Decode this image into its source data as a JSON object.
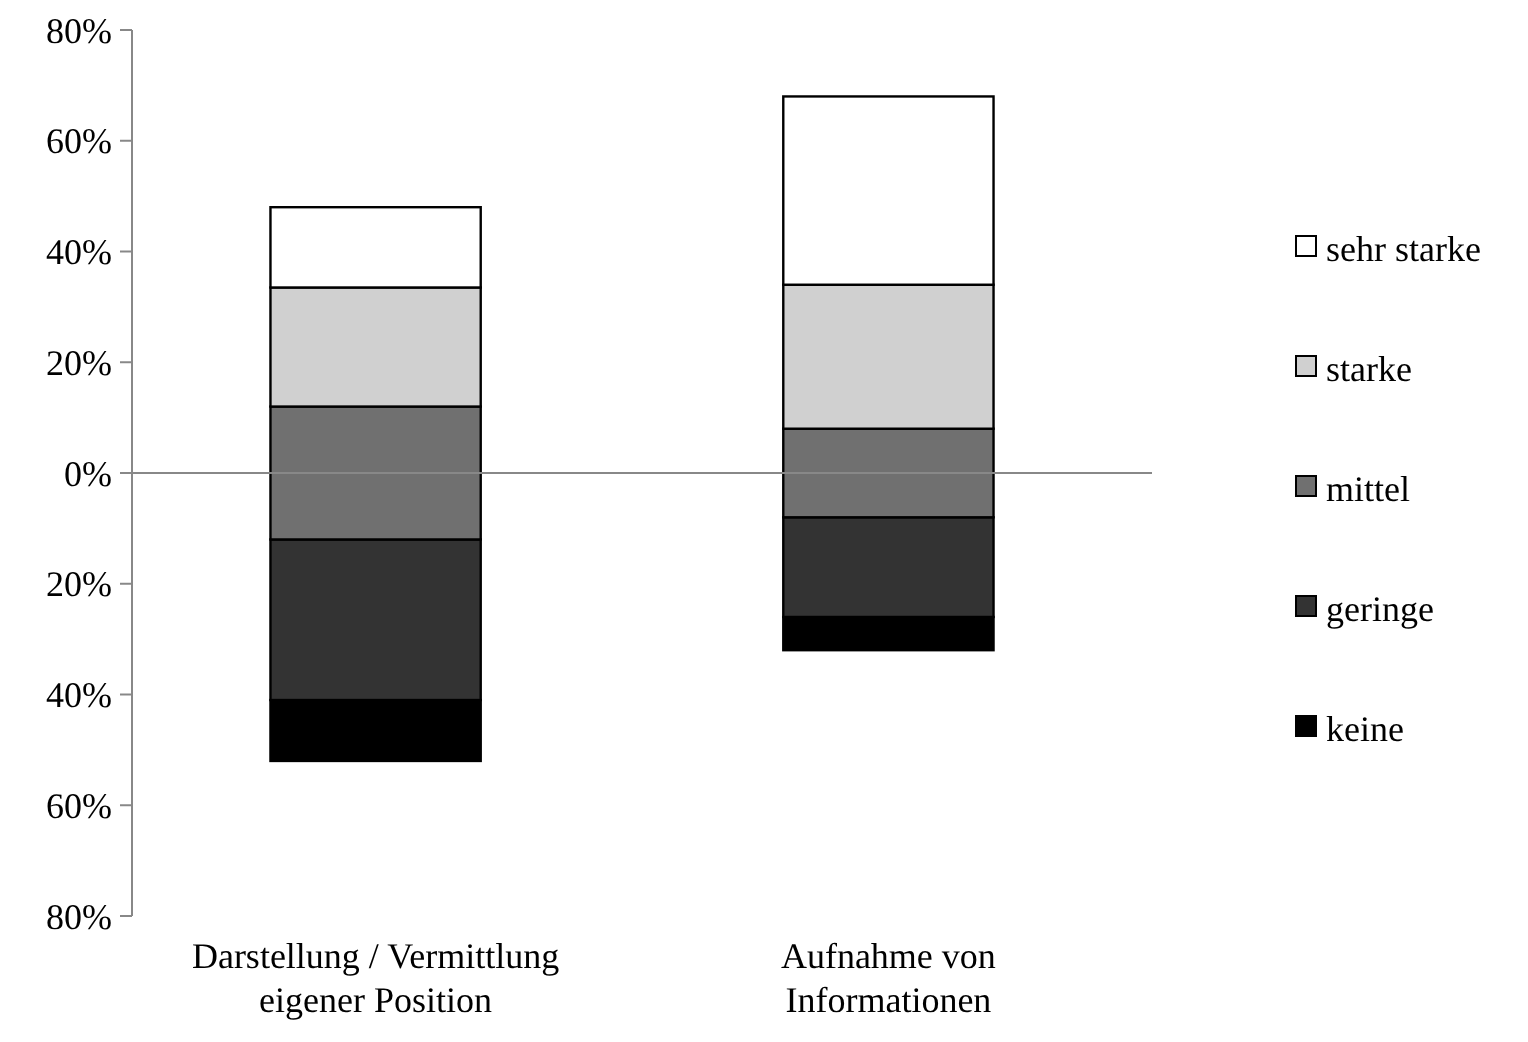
{
  "chart_data": {
    "type": "bar",
    "categories": [
      "Darstellung / Vermittlung\neigener Position",
      "Aufnahme von\nInformationen"
    ],
    "series": [
      {
        "name": "keine",
        "color": "#000000",
        "base": [
          -52,
          -32
        ],
        "values": [
          11,
          6
        ]
      },
      {
        "name": "geringe",
        "color": "#333333",
        "base": [
          -41,
          -26
        ],
        "values": [
          29,
          18
        ]
      },
      {
        "name": "mittel",
        "color": "#707070",
        "base": [
          -12,
          -8
        ],
        "values": [
          24,
          16
        ]
      },
      {
        "name": "starke",
        "color": "#d0d0d0",
        "base": [
          12,
          8
        ],
        "values": [
          21.5,
          26
        ]
      },
      {
        "name": "sehr starke",
        "color": "#ffffff",
        "base": [
          33.5,
          34
        ],
        "values": [
          14.5,
          34
        ]
      }
    ],
    "ylim": [
      -80,
      80
    ],
    "yticks": [
      {
        "value": -80,
        "label": "80%"
      },
      {
        "value": -60,
        "label": "60%"
      },
      {
        "value": -40,
        "label": "40%"
      },
      {
        "value": -20,
        "label": "20%"
      },
      {
        "value": 0,
        "label": "0%"
      },
      {
        "value": 20,
        "label": "20%"
      },
      {
        "value": 40,
        "label": "40%"
      },
      {
        "value": 60,
        "label": "60%"
      },
      {
        "value": 80,
        "label": "80%"
      }
    ],
    "legend": "right"
  }
}
